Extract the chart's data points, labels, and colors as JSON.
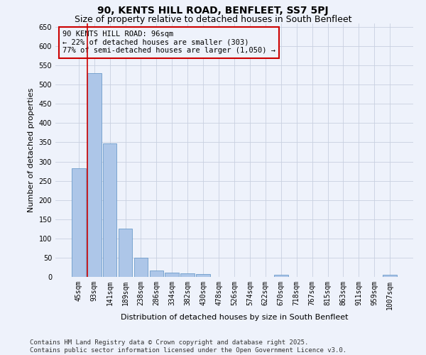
{
  "title": "90, KENTS HILL ROAD, BENFLEET, SS7 5PJ",
  "subtitle": "Size of property relative to detached houses in South Benfleet",
  "xlabel": "Distribution of detached houses by size in South Benfleet",
  "ylabel": "Number of detached properties",
  "footer_line1": "Contains HM Land Registry data © Crown copyright and database right 2025.",
  "footer_line2": "Contains public sector information licensed under the Open Government Licence v3.0.",
  "categories": [
    "45sqm",
    "93sqm",
    "141sqm",
    "189sqm",
    "238sqm",
    "286sqm",
    "334sqm",
    "382sqm",
    "430sqm",
    "478sqm",
    "526sqm",
    "574sqm",
    "622sqm",
    "670sqm",
    "718sqm",
    "767sqm",
    "815sqm",
    "863sqm",
    "911sqm",
    "959sqm",
    "1007sqm"
  ],
  "values": [
    283,
    530,
    348,
    125,
    50,
    17,
    11,
    10,
    7,
    0,
    0,
    0,
    0,
    5,
    0,
    0,
    0,
    0,
    0,
    0,
    5
  ],
  "bar_color": "#adc6e8",
  "bar_edge_color": "#5a8fc2",
  "grid_color": "#c8d0e0",
  "background_color": "#eef2fb",
  "annotation_text_line1": "90 KENTS HILL ROAD: 96sqm",
  "annotation_text_line2": "← 22% of detached houses are smaller (303)",
  "annotation_text_line3": "77% of semi-detached houses are larger (1,050) →",
  "annotation_box_color": "#cc0000",
  "vline_color": "#cc0000",
  "vline_x": 0.575,
  "ylim": [
    0,
    660
  ],
  "yticks": [
    0,
    50,
    100,
    150,
    200,
    250,
    300,
    350,
    400,
    450,
    500,
    550,
    600,
    650
  ],
  "title_fontsize": 10,
  "subtitle_fontsize": 9,
  "axis_label_fontsize": 8,
  "tick_fontsize": 7,
  "annotation_fontsize": 7.5,
  "footer_fontsize": 6.5
}
